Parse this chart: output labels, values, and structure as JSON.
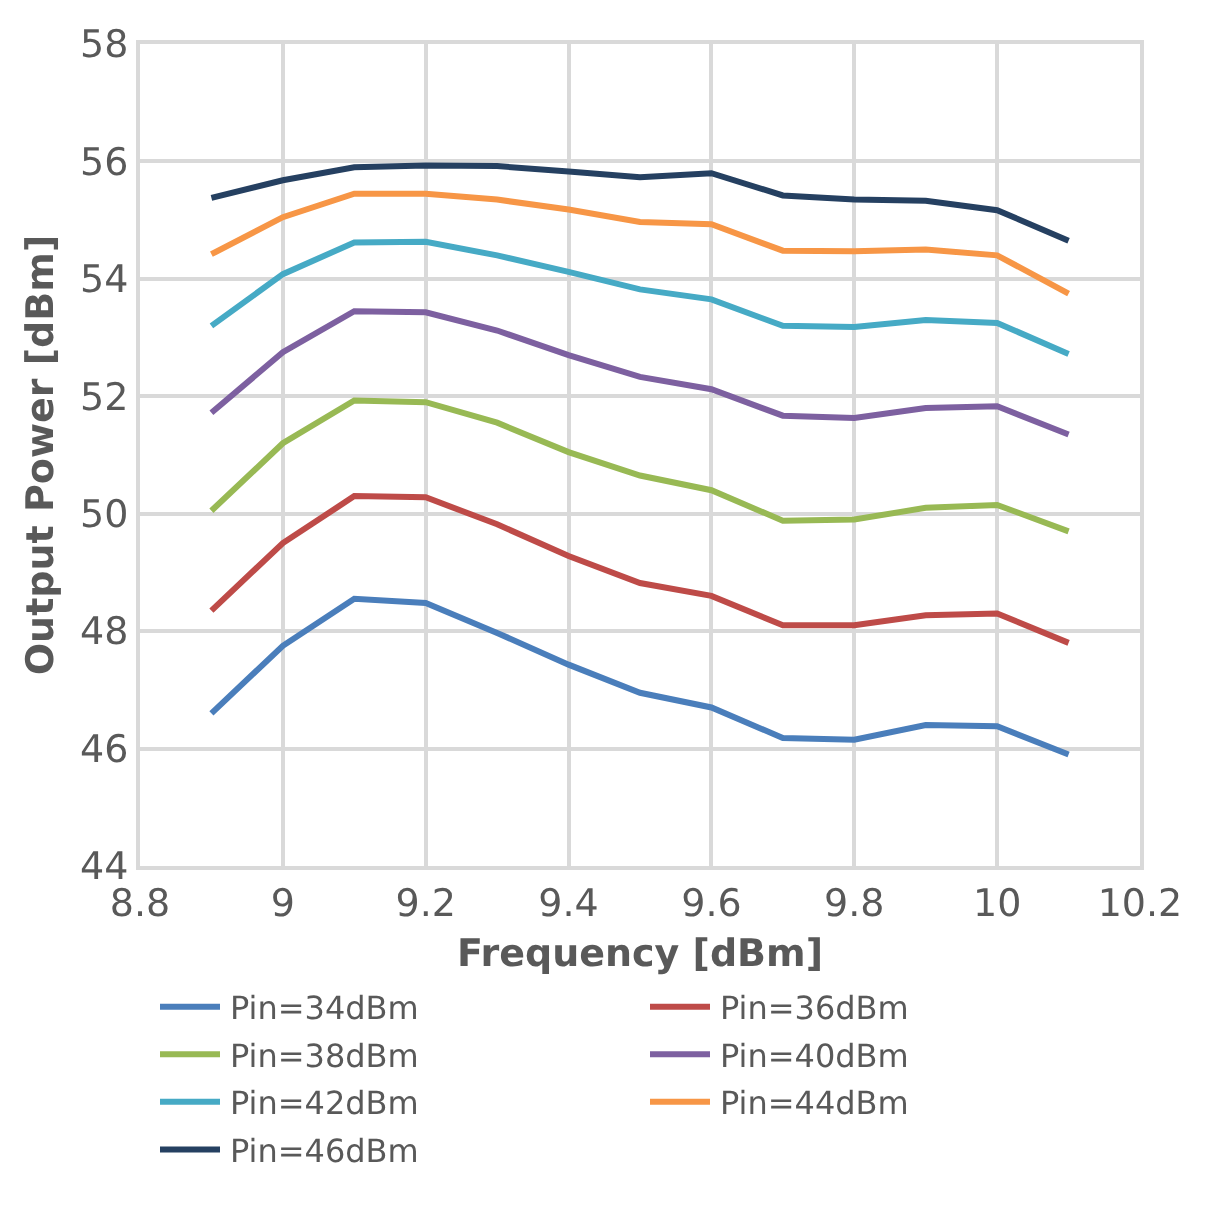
{
  "chart_data": {
    "type": "line",
    "xlabel": "Frequency [dBm]",
    "ylabel": "Output Power [dBm]",
    "x": [
      8.9,
      9.0,
      9.1,
      9.2,
      9.3,
      9.4,
      9.5,
      9.6,
      9.7,
      9.8,
      9.9,
      10.0,
      10.1
    ],
    "xlim": [
      8.8,
      10.2
    ],
    "xticks": [
      8.8,
      9,
      9.2,
      9.4,
      9.6,
      9.8,
      10,
      10.2
    ],
    "ylim": [
      44,
      58
    ],
    "yticks": [
      44,
      46,
      48,
      50,
      52,
      54,
      56,
      58
    ],
    "grid": true,
    "legend": "bottom",
    "marker": "none",
    "line_style": "solid",
    "series": [
      {
        "name": "Pin=34dBm",
        "color": "#4a7ebb",
        "values": [
          46.6,
          47.75,
          48.55,
          48.48,
          47.97,
          47.43,
          46.95,
          46.7,
          46.18,
          46.15,
          46.4,
          46.38,
          45.9
        ]
      },
      {
        "name": "Pin=36dBm",
        "color": "#be4b48",
        "values": [
          48.35,
          49.5,
          50.3,
          50.28,
          49.82,
          49.28,
          48.82,
          48.6,
          48.1,
          48.1,
          48.27,
          48.3,
          47.8
        ]
      },
      {
        "name": "Pin=38dBm",
        "color": "#98b954",
        "values": [
          50.05,
          51.2,
          51.93,
          51.9,
          51.55,
          51.05,
          50.65,
          50.4,
          49.88,
          49.9,
          50.1,
          50.15,
          49.7
        ]
      },
      {
        "name": "Pin=40dBm",
        "color": "#7d60a0",
        "values": [
          51.72,
          52.75,
          53.45,
          53.43,
          53.12,
          52.7,
          52.33,
          52.12,
          51.67,
          51.63,
          51.8,
          51.83,
          51.35
        ]
      },
      {
        "name": "Pin=42dBm",
        "color": "#46aac5",
        "values": [
          53.2,
          54.08,
          54.62,
          54.63,
          54.4,
          54.12,
          53.82,
          53.65,
          53.2,
          53.18,
          53.3,
          53.25,
          52.72
        ]
      },
      {
        "name": "Pin=44dBm",
        "color": "#f79646",
        "values": [
          54.42,
          55.05,
          55.45,
          55.45,
          55.35,
          55.18,
          54.97,
          54.93,
          54.48,
          54.47,
          54.5,
          54.4,
          53.75
        ]
      },
      {
        "name": "Pin=46dBm",
        "color": "#254061",
        "values": [
          55.38,
          55.68,
          55.9,
          55.93,
          55.92,
          55.83,
          55.73,
          55.8,
          55.42,
          55.35,
          55.33,
          55.17,
          54.65
        ]
      }
    ]
  }
}
